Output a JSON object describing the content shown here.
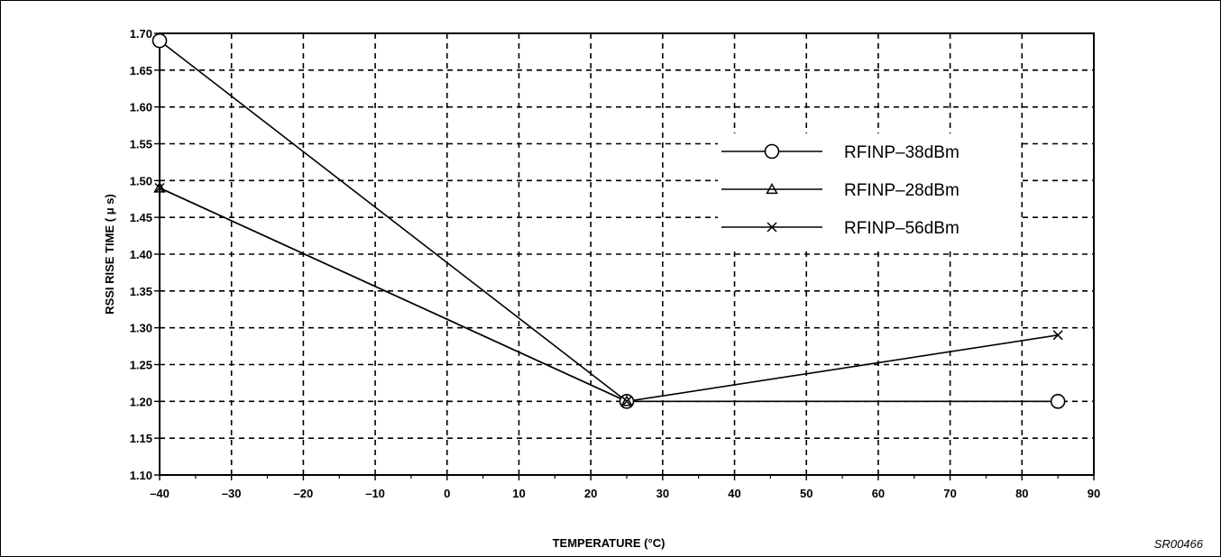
{
  "chart_data": {
    "type": "line",
    "xlabel": "TEMPERATURE (°C)",
    "ylabel": "RSSI RISE TIME  ( μ s)",
    "xlim": [
      -40,
      90
    ],
    "ylim": [
      1.1,
      1.7
    ],
    "x_ticks": [
      -40,
      -30,
      -20,
      -10,
      0,
      10,
      20,
      30,
      40,
      50,
      60,
      70,
      80,
      90
    ],
    "x_tick_labels": [
      "–40",
      "–30",
      "–20",
      "–10",
      "0",
      "10",
      "20",
      "30",
      "40",
      "50",
      "60",
      "70",
      "80",
      "90"
    ],
    "y_ticks": [
      1.1,
      1.15,
      1.2,
      1.25,
      1.3,
      1.35,
      1.4,
      1.45,
      1.5,
      1.55,
      1.6,
      1.65,
      1.7
    ],
    "y_tick_labels": [
      "1.10",
      "1.15",
      "1.20",
      "1.25",
      "1.30",
      "1.35",
      "1.40",
      "1.45",
      "1.50",
      "1.55",
      "1.60",
      "1.65",
      "1.70"
    ],
    "grid": true,
    "legend_position": "right",
    "series": [
      {
        "name": "RFINP–38dBm",
        "marker": "circle",
        "x": [
          -40,
          25,
          85
        ],
        "y": [
          1.69,
          1.2,
          1.2
        ]
      },
      {
        "name": "RFINP–28dBm",
        "marker": "triangle",
        "x": [
          -40,
          25
        ],
        "y": [
          1.49,
          1.2
        ]
      },
      {
        "name": "RFINP–56dBm",
        "marker": "cross",
        "x": [
          -40,
          25,
          85
        ],
        "y": [
          1.49,
          1.2,
          1.29
        ]
      }
    ]
  },
  "figure_code": "SR00466",
  "colors": {
    "line": "#000000",
    "background": "#ffffff"
  }
}
